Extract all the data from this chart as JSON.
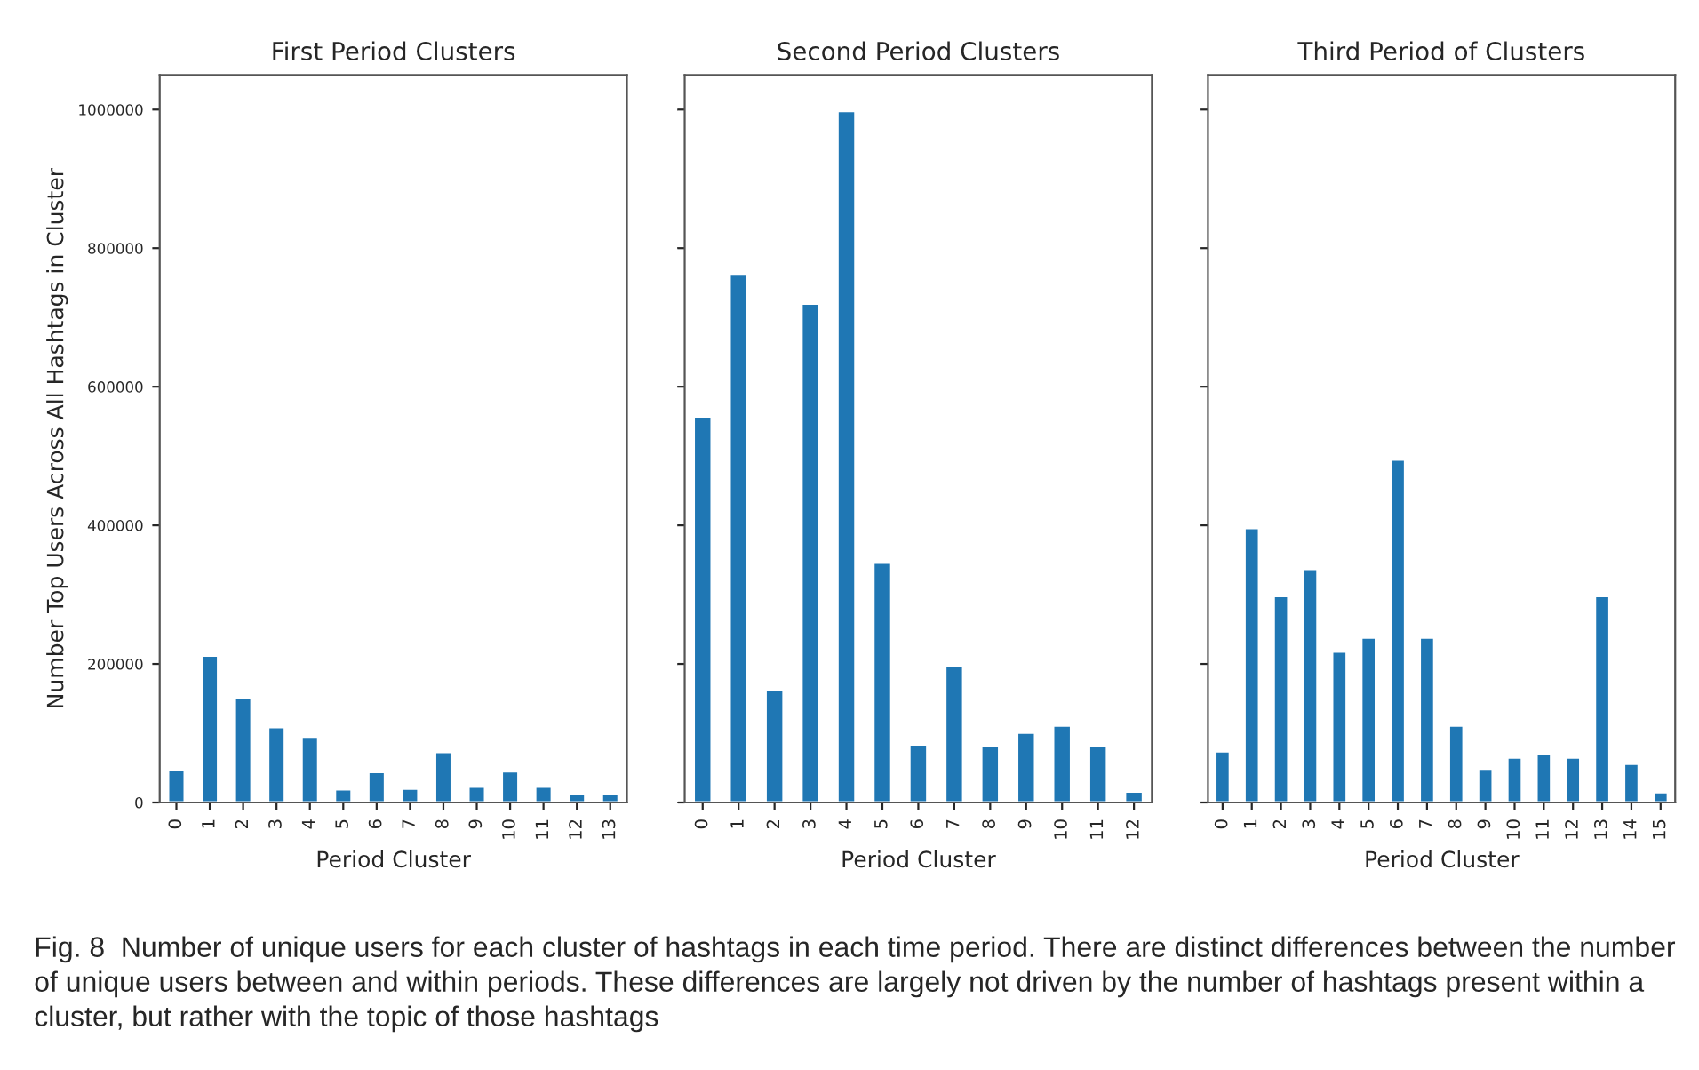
{
  "chart_data": [
    {
      "type": "bar",
      "title": "First Period Clusters",
      "xlabel": "Period Cluster",
      "ylabel": "Number Top Users Across All Hashtags in Cluster",
      "categories": [
        "0",
        "1",
        "2",
        "3",
        "4",
        "5",
        "6",
        "7",
        "8",
        "9",
        "10",
        "11",
        "12",
        "13"
      ],
      "values": [
        48000,
        212000,
        151000,
        109000,
        95000,
        19000,
        44000,
        20000,
        73000,
        23000,
        45000,
        23000,
        12000,
        12000
      ],
      "color": "#1f77b4",
      "ylim": [
        0,
        1050000
      ],
      "yticks": [
        0,
        200000,
        400000,
        600000,
        800000,
        1000000
      ],
      "grid": false,
      "legend": false
    },
    {
      "type": "bar",
      "title": "Second Period Clusters",
      "xlabel": "Period Cluster",
      "categories": [
        "0",
        "1",
        "2",
        "3",
        "4",
        "5",
        "6",
        "7",
        "8",
        "9",
        "10",
        "11",
        "12"
      ],
      "values": [
        557000,
        762000,
        162000,
        720000,
        998000,
        346000,
        84000,
        197000,
        82000,
        101000,
        111000,
        82000,
        16000
      ],
      "color": "#1f77b4",
      "ylim": [
        0,
        1050000
      ],
      "yticks": [
        0,
        200000,
        400000,
        600000,
        800000,
        1000000
      ],
      "tick_labels": "x",
      "grid": false,
      "legend": false
    },
    {
      "type": "bar",
      "title": "Third Period of Clusters",
      "xlabel": "Period Cluster",
      "categories": [
        "0",
        "1",
        "2",
        "3",
        "4",
        "5",
        "6",
        "7",
        "8",
        "9",
        "10",
        "11",
        "12",
        "13",
        "14",
        "15"
      ],
      "values": [
        74000,
        396000,
        298000,
        337000,
        218000,
        238000,
        495000,
        238000,
        111000,
        49000,
        65000,
        70000,
        65000,
        298000,
        56000,
        15000
      ],
      "color": "#1f77b4",
      "ylim": [
        0,
        1050000
      ],
      "yticks": [
        0,
        200000,
        400000,
        600000,
        800000,
        1000000
      ],
      "tick_labels": "x",
      "grid": false,
      "legend": false,
      "annotations": [
        "Fig. 8  Number of unique users for each cluster of hashtags in each time period. There are distinct differences between the number of unique users between and within periods. These differences are largely not driven by the number of hashtags present within a cluster, but rather with the topic of those hashtags"
      ]
    }
  ]
}
